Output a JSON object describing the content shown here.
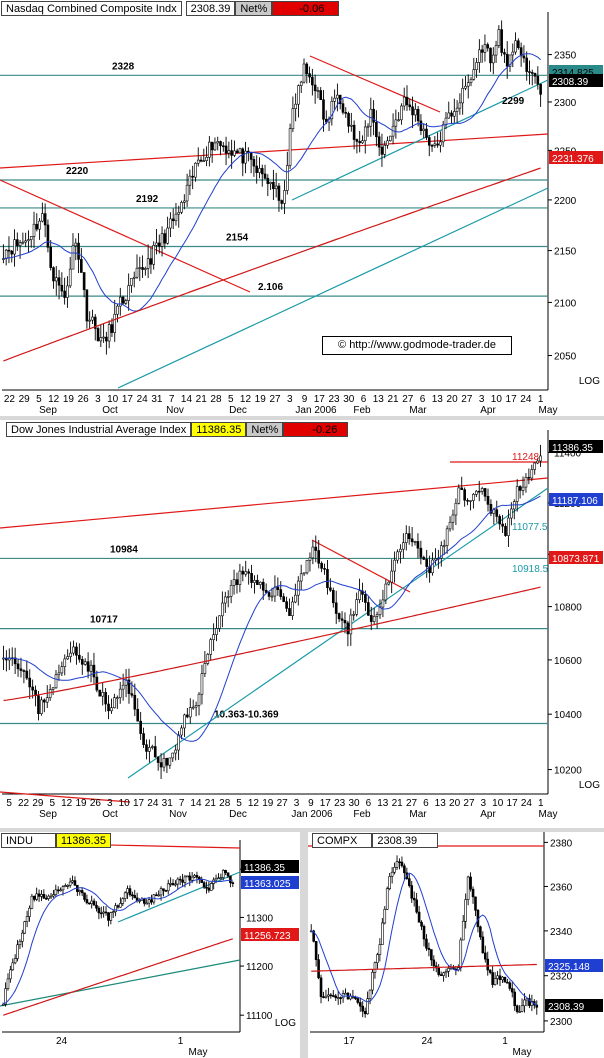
{
  "credit": "© http://www.godmode-trader.de",
  "colors": {
    "ma20": "#1f3fd0",
    "ma200": "#d01818",
    "trend_red": "#e01818",
    "trend_teal": "#1a9aa8",
    "level": "#3a8a8a",
    "candle": "#000000"
  },
  "chart_data": [
    {
      "id": "nasdaq",
      "type": "candlestick",
      "header": {
        "name": "Nasdaq Combined Composite Indx",
        "value": "2308.39",
        "net_label": "Net%",
        "net_value": "-0.06"
      },
      "scale": "log",
      "ylim": [
        2020,
        2385
      ],
      "yticks": [
        2050,
        2100,
        2150,
        2200,
        2250,
        2300,
        2350
      ],
      "log_label": "LOG",
      "xticks": [
        "22",
        "29",
        "5",
        "12",
        "19",
        "26",
        "3",
        "10",
        "17",
        "24",
        "31",
        "7",
        "14",
        "21",
        "28",
        "5",
        "12",
        "19",
        "27",
        "3",
        "9",
        "17",
        "23",
        "30",
        "6",
        "13",
        "21",
        "27",
        "6",
        "13",
        "20",
        "27",
        "3",
        "10",
        "17",
        "24",
        "1"
      ],
      "months": [
        "Sep",
        "Oct",
        "Nov",
        "Dec",
        "Jan 2006",
        "Feb",
        "Mar",
        "Apr",
        "May"
      ],
      "price_boxes": [
        {
          "label": "2314.825",
          "color": "#2a8a8a",
          "text_color": "#000"
        },
        {
          "label": "2308.39",
          "color": "#000000",
          "text_color": "#fff"
        },
        {
          "label": "2231.376",
          "color": "#e01818",
          "text_color": "#fff"
        }
      ],
      "levels": [
        {
          "value": 2328,
          "label": "2328"
        },
        {
          "value": 2220,
          "label": "2220"
        },
        {
          "value": 2192,
          "label": "2192"
        },
        {
          "value": 2154,
          "label": "2154"
        },
        {
          "value": 2106,
          "label": "2.106"
        }
      ],
      "annotations": [
        "2299"
      ],
      "keypoints": [
        [
          0,
          2150
        ],
        [
          8,
          2160
        ],
        [
          14,
          2185
        ],
        [
          18,
          2125
        ],
        [
          22,
          2105
        ],
        [
          26,
          2165
        ],
        [
          30,
          2090
        ],
        [
          36,
          2060
        ],
        [
          42,
          2098
        ],
        [
          48,
          2125
        ],
        [
          54,
          2148
        ],
        [
          58,
          2165
        ],
        [
          64,
          2192
        ],
        [
          70,
          2240
        ],
        [
          76,
          2260
        ],
        [
          82,
          2250
        ],
        [
          88,
          2240
        ],
        [
          92,
          2226
        ],
        [
          97,
          2215
        ],
        [
          100,
          2190
        ],
        [
          104,
          2290
        ],
        [
          108,
          2334
        ],
        [
          112,
          2318
        ],
        [
          116,
          2275
        ],
        [
          120,
          2315
        ],
        [
          124,
          2278
        ],
        [
          128,
          2250
        ],
        [
          132,
          2290
        ],
        [
          136,
          2246
        ],
        [
          140,
          2275
        ],
        [
          144,
          2300
        ],
        [
          148,
          2288
        ],
        [
          152,
          2265
        ],
        [
          155,
          2250
        ],
        [
          160,
          2285
        ],
        [
          164,
          2302
        ],
        [
          168,
          2325
        ],
        [
          172,
          2360
        ],
        [
          176,
          2345
        ],
        [
          178,
          2375
        ],
        [
          181,
          2330
        ],
        [
          184,
          2370
        ],
        [
          188,
          2328
        ],
        [
          190,
          2335
        ],
        [
          193,
          2308
        ]
      ]
    },
    {
      "id": "dow",
      "type": "candlestick",
      "header": {
        "name": "Dow Jones Industrial Average Index",
        "value": "11386.35",
        "net_label": "Net%",
        "net_value": "-0.26"
      },
      "scale": "log",
      "ylim": [
        10120,
        11450
      ],
      "yticks": [
        10200,
        10400,
        10600,
        10800,
        11000,
        11200,
        11400
      ],
      "log_label": "LOG",
      "xticks": [
        "5",
        "22",
        "29",
        "5",
        "12",
        "19",
        "26",
        "3",
        "10",
        "17",
        "24",
        "31",
        "7",
        "14",
        "21",
        "28",
        "5",
        "12",
        "19",
        "27",
        "3",
        "9",
        "17",
        "23",
        "30",
        "6",
        "13",
        "21",
        "27",
        "6",
        "13",
        "20",
        "27",
        "3",
        "10",
        "17",
        "24",
        "1"
      ],
      "months": [
        "Sep",
        "Oct",
        "Nov",
        "Dec",
        "Jan 2006",
        "Feb",
        "Mar",
        "Apr",
        "May"
      ],
      "price_boxes": [
        {
          "label": "11386.35",
          "color": "#000000",
          "text_color": "#fff"
        },
        {
          "label": "11187.106",
          "color": "#1f3fd0",
          "text_color": "#fff"
        },
        {
          "label": "10873.871",
          "color": "#e01818",
          "text_color": "#fff"
        }
      ],
      "levels": [
        {
          "value": 10984,
          "label": "10984"
        },
        {
          "value": 10717,
          "label": "10717"
        },
        {
          "value": 10366,
          "label": "10.363-10.369"
        }
      ],
      "annotations": [
        "11077.5",
        "10918.5",
        "11248"
      ],
      "keypoints": [
        [
          0,
          10630
        ],
        [
          6,
          10580
        ],
        [
          12,
          10420
        ],
        [
          18,
          10530
        ],
        [
          24,
          10650
        ],
        [
          30,
          10560
        ],
        [
          36,
          10410
        ],
        [
          42,
          10520
        ],
        [
          48,
          10300
        ],
        [
          54,
          10220
        ],
        [
          58,
          10240
        ],
        [
          62,
          10380
        ],
        [
          66,
          10450
        ],
        [
          70,
          10620
        ],
        [
          74,
          10780
        ],
        [
          78,
          10880
        ],
        [
          82,
          10930
        ],
        [
          86,
          10880
        ],
        [
          90,
          10860
        ],
        [
          94,
          10860
        ],
        [
          98,
          10780
        ],
        [
          102,
          10920
        ],
        [
          106,
          11030
        ],
        [
          110,
          10920
        ],
        [
          114,
          10780
        ],
        [
          118,
          10700
        ],
        [
          122,
          10880
        ],
        [
          126,
          10740
        ],
        [
          130,
          10830
        ],
        [
          134,
          10960
        ],
        [
          138,
          11080
        ],
        [
          142,
          11010
        ],
        [
          146,
          10940
        ],
        [
          148,
          10970
        ],
        [
          152,
          11080
        ],
        [
          156,
          11240
        ],
        [
          160,
          11200
        ],
        [
          164,
          11250
        ],
        [
          166,
          11180
        ],
        [
          170,
          11140
        ],
        [
          172,
          11090
        ],
        [
          176,
          11250
        ],
        [
          180,
          11320
        ],
        [
          184,
          11386
        ]
      ]
    },
    {
      "id": "indu",
      "type": "candlestick",
      "header": {
        "name": "INDU",
        "value": "11386.35"
      },
      "scale": "log",
      "ylim": [
        11070,
        11440
      ],
      "yticks": [
        11100,
        11200,
        11300,
        11400
      ],
      "log_label": "LOG",
      "xticks": [
        "24",
        "1"
      ],
      "months": [
        "May"
      ],
      "price_boxes": [
        {
          "label": "11386.35",
          "color": "#000000",
          "text_color": "#fff"
        },
        {
          "label": "11363.025",
          "color": "#1f3fd0",
          "text_color": "#fff"
        },
        {
          "label": "11256.723",
          "color": "#e01818",
          "text_color": "#fff"
        }
      ],
      "keypoints": [
        [
          0,
          11130
        ],
        [
          6,
          11240
        ],
        [
          12,
          11340
        ],
        [
          20,
          11345
        ],
        [
          28,
          11375
        ],
        [
          36,
          11330
        ],
        [
          44,
          11300
        ],
        [
          52,
          11355
        ],
        [
          60,
          11330
        ],
        [
          70,
          11370
        ],
        [
          80,
          11385
        ],
        [
          86,
          11360
        ],
        [
          92,
          11390
        ],
        [
          96,
          11370
        ]
      ]
    },
    {
      "id": "compx",
      "type": "candlestick",
      "header": {
        "name": "COMPX",
        "value": "2308.39"
      },
      "scale": "log",
      "ylim": [
        2296,
        2382
      ],
      "yticks": [
        2300,
        2320,
        2340,
        2360,
        2380
      ],
      "log_label": "",
      "xticks": [
        "17",
        "24",
        "1"
      ],
      "months": [
        "May"
      ],
      "price_boxes": [
        {
          "label": "2325.148",
          "color": "#1f3fd0",
          "text_color": "#fff"
        },
        {
          "label": "2308.39",
          "color": "#000000",
          "text_color": "#fff"
        }
      ],
      "keypoints": [
        [
          0,
          2342
        ],
        [
          4,
          2312
        ],
        [
          10,
          2310
        ],
        [
          16,
          2312
        ],
        [
          22,
          2305
        ],
        [
          28,
          2335
        ],
        [
          32,
          2365
        ],
        [
          36,
          2372
        ],
        [
          40,
          2360
        ],
        [
          44,
          2345
        ],
        [
          48,
          2330
        ],
        [
          52,
          2322
        ],
        [
          56,
          2322
        ],
        [
          60,
          2325
        ],
        [
          64,
          2365
        ],
        [
          66,
          2355
        ],
        [
          70,
          2330
        ],
        [
          74,
          2318
        ],
        [
          80,
          2318
        ],
        [
          84,
          2305
        ],
        [
          88,
          2308
        ],
        [
          92,
          2306
        ]
      ]
    }
  ]
}
